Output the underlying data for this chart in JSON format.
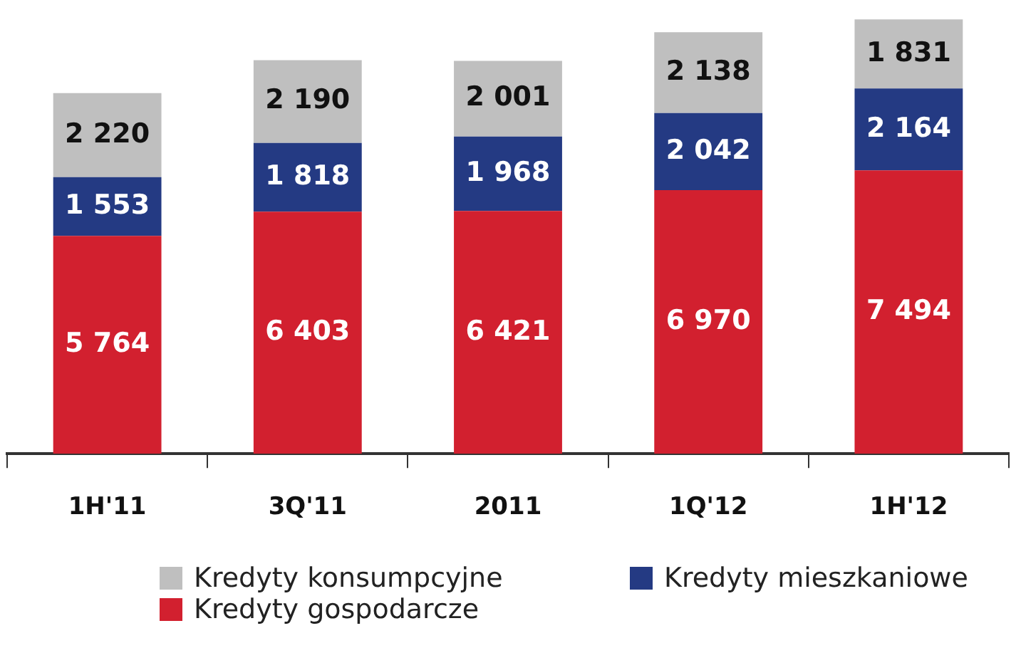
{
  "chart_data": {
    "type": "bar",
    "stacked": true,
    "categories": [
      "1H'11",
      "3Q'11",
      "2011",
      "1Q'12",
      "1H'12"
    ],
    "series": [
      {
        "name": "Kredyty gospodarcze",
        "color": "#d2202f",
        "values": [
          5764,
          6403,
          6421,
          6970,
          7494
        ],
        "value_labels": [
          "5 764",
          "6 403",
          "6 421",
          "6 970",
          "7 494"
        ]
      },
      {
        "name": "Kredyty mieszkaniowe",
        "color": "#243a83",
        "values": [
          1553,
          1818,
          1968,
          2042,
          2164
        ],
        "value_labels": [
          "1 553",
          "1 818",
          "1 968",
          "2 042",
          "2 164"
        ]
      },
      {
        "name": "Kredyty konsumpcyjne",
        "color": "#bfbfbf",
        "values": [
          2220,
          2190,
          2001,
          2138,
          1831
        ],
        "value_labels": [
          "2 220",
          "2 190",
          "2 001",
          "2 138",
          "1 831"
        ]
      }
    ],
    "legend": "bottom",
    "tick_labels": "x",
    "grid": false
  }
}
